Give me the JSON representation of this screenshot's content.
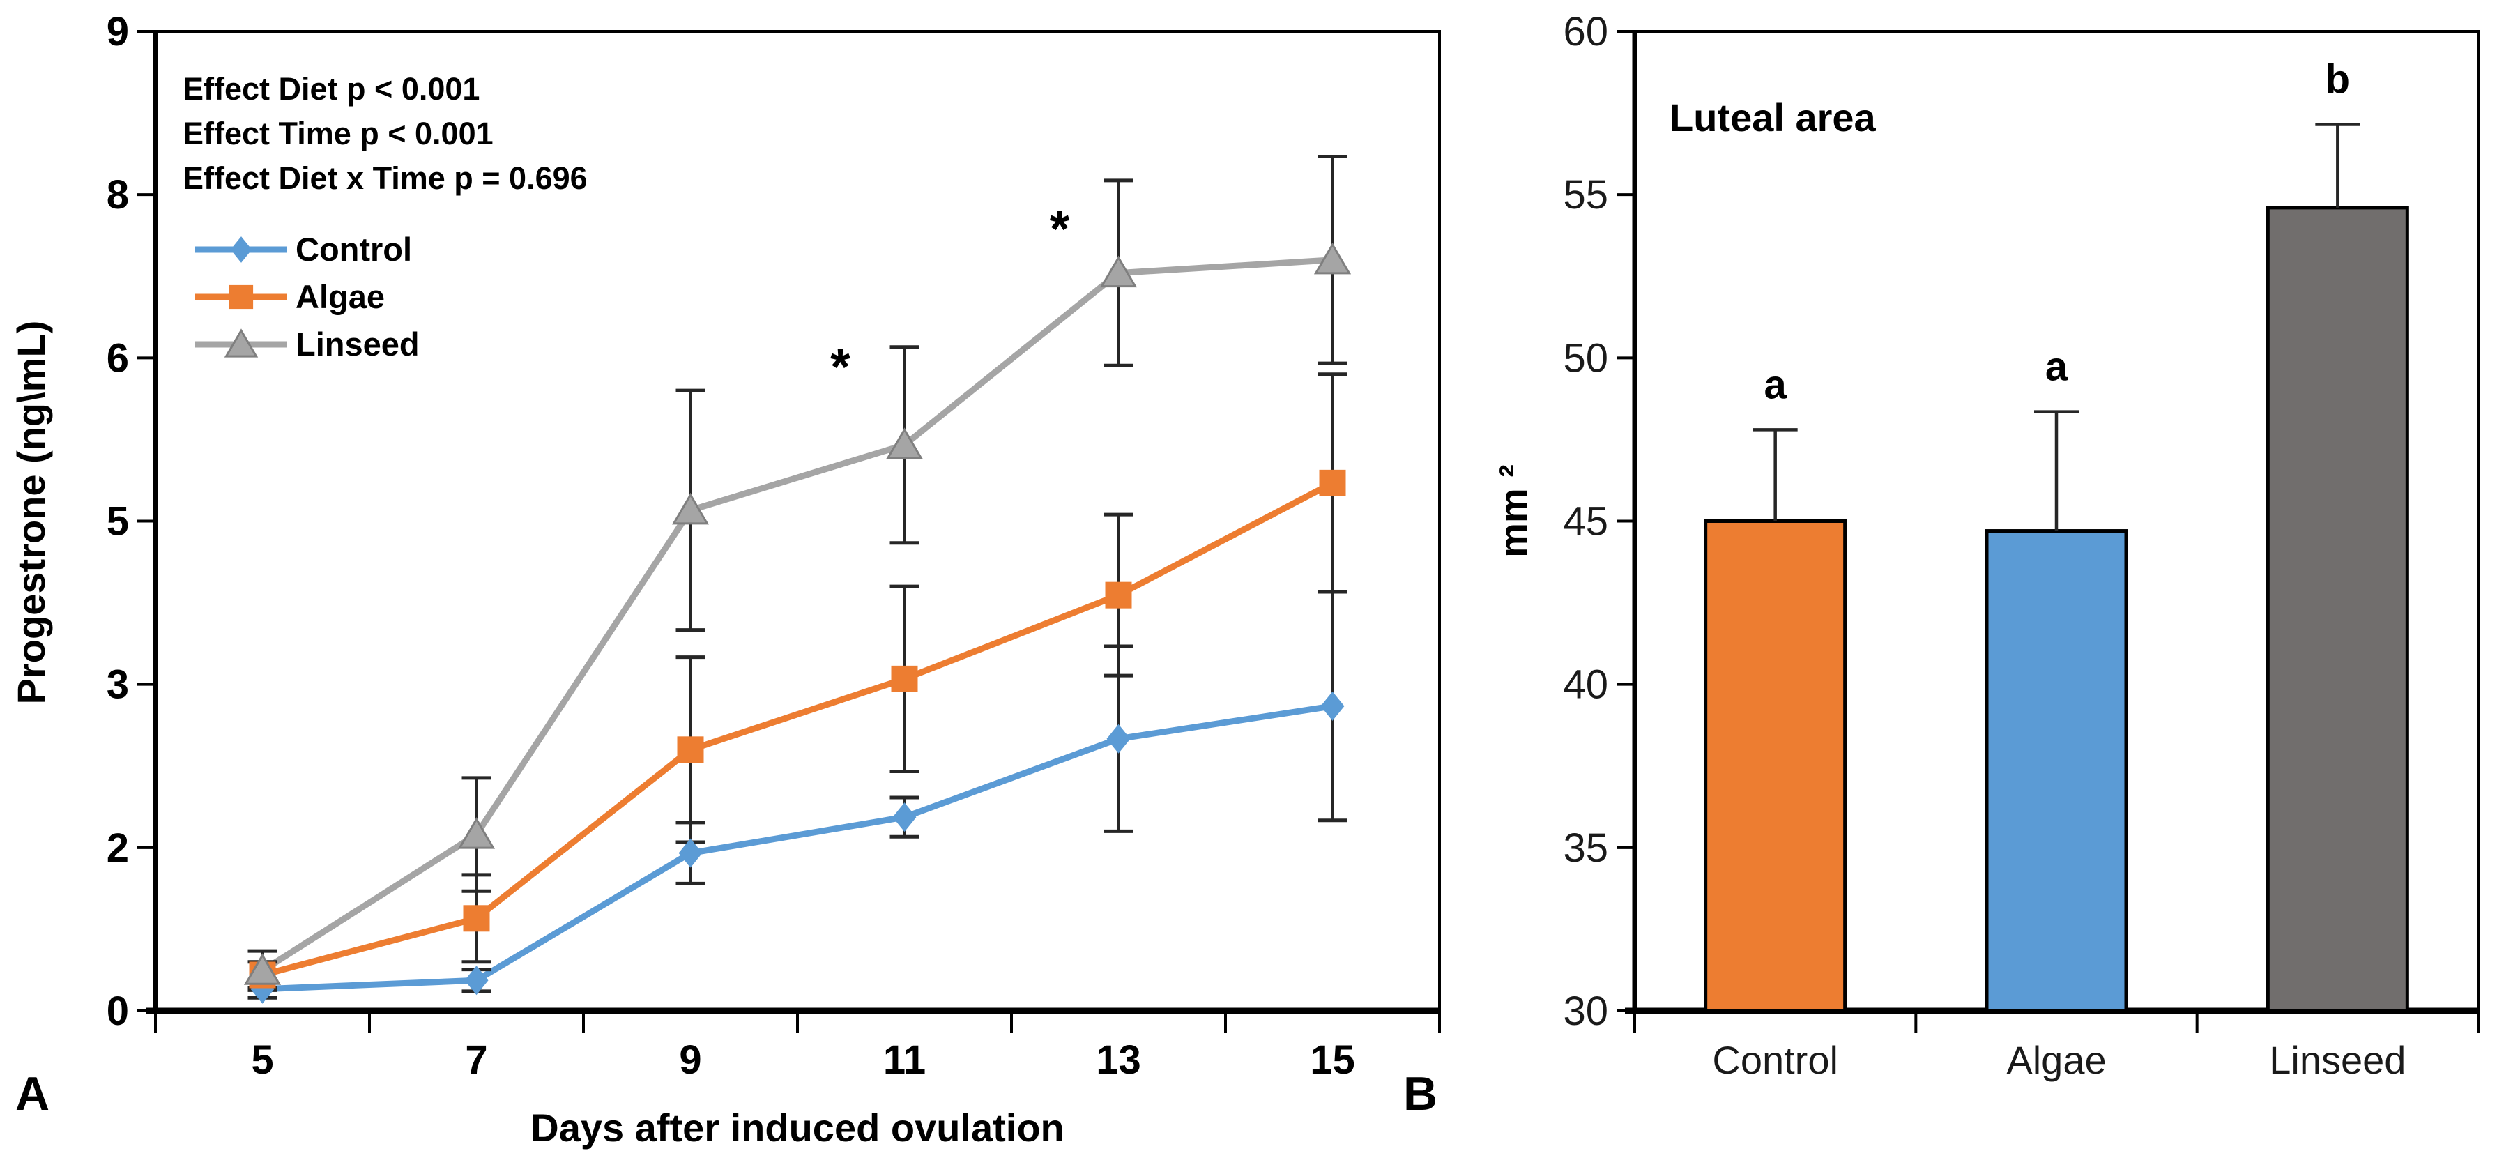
{
  "figure": {
    "background": "#ffffff",
    "panel_a": {
      "label": "A"
    },
    "panel_b": {
      "label": "B"
    },
    "error_bar_color": "#262626",
    "axis_color": "#000000"
  },
  "chart_data": [
    {
      "type": "line",
      "panel": "A",
      "title": "",
      "xlabel": "Days after induced ovulation",
      "ylabel": "Progestrone  (ng\\mL)",
      "x": [
        5,
        7,
        9,
        11,
        13,
        15
      ],
      "x_tick_labels": [
        "5",
        "7",
        "9",
        "11",
        "13",
        "15"
      ],
      "ylim": [
        0,
        9
      ],
      "y_axis": {
        "tick_values": [
          0,
          1.5,
          3,
          4.5,
          6,
          7.5,
          9
        ],
        "tick_labels": [
          "0",
          "2",
          "3",
          "5",
          "6",
          "8",
          "9"
        ]
      },
      "grid": false,
      "legend_position": "inside-top-left",
      "stats_lines": [
        "Effect Diet p < 0.001",
        "Effect Time p < 0.001",
        "Effect Diet x Time p = 0.696"
      ],
      "series": [
        {
          "name": "Control",
          "color": "#5B9BD5",
          "marker": "diamond",
          "values": [
            0.2,
            0.28,
            1.45,
            1.78,
            2.5,
            2.8
          ],
          "errors": [
            0.08,
            0.1,
            0.28,
            0.18,
            0.85,
            1.05
          ]
        },
        {
          "name": "Algae",
          "color": "#ED7D31",
          "marker": "square",
          "values": [
            0.33,
            0.85,
            2.4,
            3.05,
            3.82,
            4.85
          ],
          "errors": [
            0.12,
            0.4,
            0.85,
            0.85,
            0.74,
            1.0
          ]
        },
        {
          "name": "Linseed",
          "color": "#A5A5A5",
          "marker": "triangle",
          "values": [
            0.37,
            1.62,
            4.6,
            5.2,
            6.78,
            6.9
          ],
          "errors": [
            0.18,
            0.52,
            1.1,
            0.9,
            0.85,
            0.95
          ]
        }
      ],
      "annotations": [
        {
          "text": "*",
          "x": 10.4,
          "y": 5.88
        },
        {
          "text": "*",
          "x": 12.45,
          "y": 7.15
        }
      ]
    },
    {
      "type": "bar",
      "panel": "B",
      "title": "Luteal area",
      "ylabel": "mm ²",
      "categories": [
        "Control",
        "Algae",
        "Linseed"
      ],
      "values": [
        45.0,
        44.7,
        54.6
      ],
      "errors_up": [
        2.8,
        3.65,
        2.55
      ],
      "sig_letters": [
        "a",
        "a",
        "b"
      ],
      "bar_colors": [
        "#ED7D31",
        "#5B9BD5",
        "#716E6D"
      ],
      "bar_border_color": "#000000",
      "ylim": [
        30,
        60
      ],
      "y_axis": {
        "tick_values": [
          30,
          35,
          40,
          45,
          50,
          55,
          60
        ],
        "tick_labels": [
          "30",
          "35",
          "40",
          "45",
          "50",
          "55",
          "60"
        ]
      },
      "grid": false
    }
  ]
}
